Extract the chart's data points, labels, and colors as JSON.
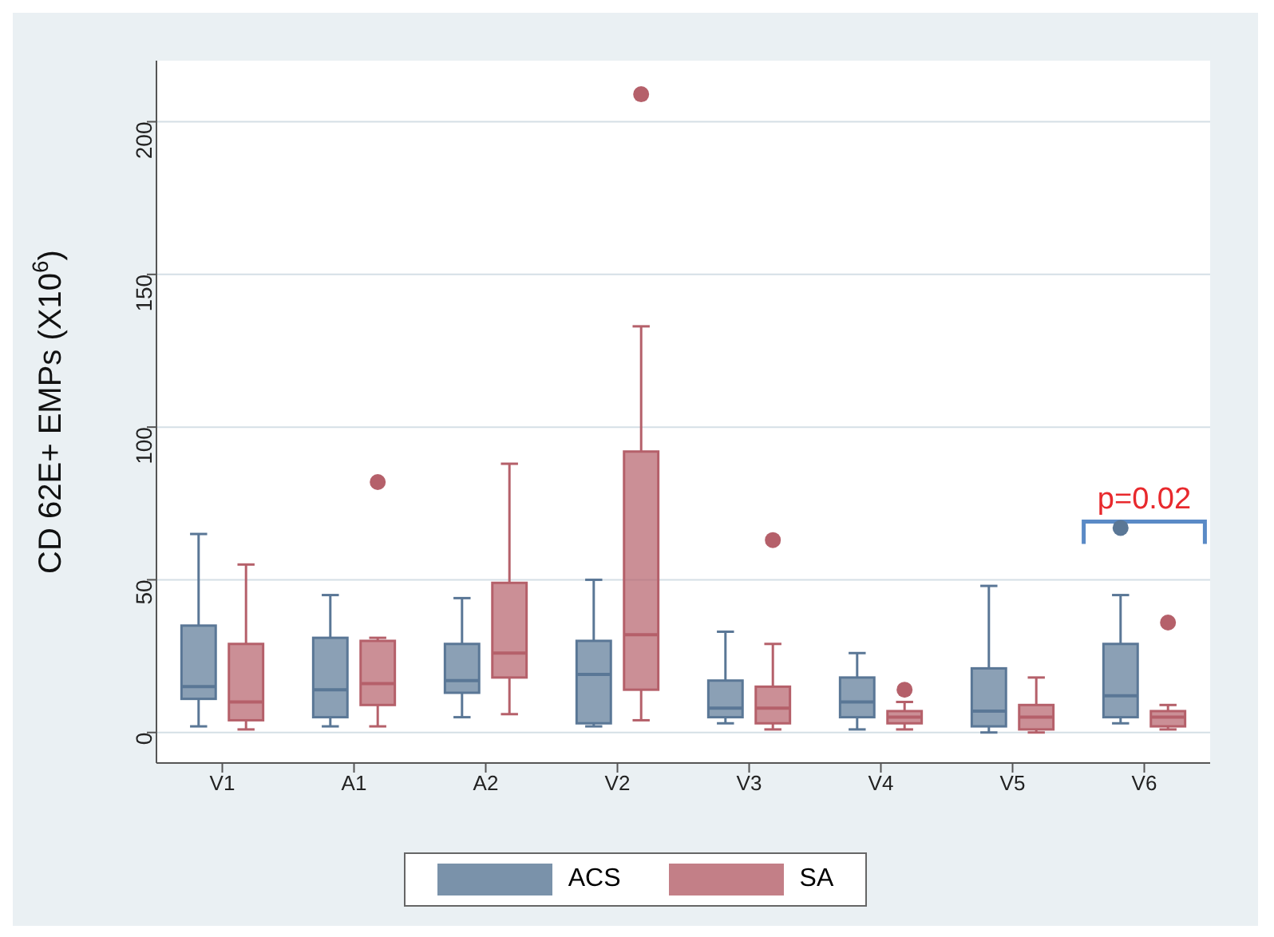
{
  "chart_data": {
    "type": "box",
    "ylabel": "CD 62E+ EMPs (X10$^{6}$)",
    "categories": [
      "V1",
      "A1",
      "A2",
      "V2",
      "V3",
      "V4",
      "V5",
      "V6"
    ],
    "ylim": [
      -10,
      220
    ],
    "yticks": [
      0,
      50,
      100,
      150,
      200
    ],
    "grid": "y",
    "legend": "bottom",
    "series": [
      {
        "name": "ACS",
        "color": "#5a7796",
        "boxes": [
          {
            "low": 2,
            "q1": 11,
            "median": 15,
            "q3": 35,
            "high": 65
          },
          {
            "low": 2,
            "q1": 5,
            "median": 14,
            "q3": 31,
            "high": 45
          },
          {
            "low": 5,
            "q1": 13,
            "median": 17,
            "q3": 29,
            "high": 44
          },
          {
            "low": 2,
            "q1": 3,
            "median": 19,
            "q3": 30,
            "high": 50
          },
          {
            "low": 3,
            "q1": 5,
            "median": 8,
            "q3": 17,
            "high": 33
          },
          {
            "low": 1,
            "q1": 5,
            "median": 10,
            "q3": 18,
            "high": 26
          },
          {
            "low": 0,
            "q1": 2,
            "median": 7,
            "q3": 21,
            "high": 48
          },
          {
            "low": 3,
            "q1": 5,
            "median": 12,
            "q3": 29,
            "high": 45,
            "outliers": [
              67
            ]
          }
        ]
      },
      {
        "name": "SA",
        "color": "#b5606a",
        "boxes": [
          {
            "low": 1,
            "q1": 4,
            "median": 10,
            "q3": 29,
            "high": 55
          },
          {
            "low": 2,
            "q1": 9,
            "median": 16,
            "q3": 30,
            "high": 31,
            "outliers": [
              82
            ]
          },
          {
            "low": 6,
            "q1": 18,
            "median": 26,
            "q3": 49,
            "high": 88
          },
          {
            "low": 4,
            "q1": 14,
            "median": 32,
            "q3": 92,
            "high": 133,
            "outliers": [
              209
            ]
          },
          {
            "low": 1,
            "q1": 3,
            "median": 8,
            "q3": 15,
            "high": 29,
            "outliers": [
              63
            ]
          },
          {
            "low": 1,
            "q1": 3,
            "median": 5,
            "q3": 7,
            "high": 10,
            "outliers": [
              14
            ]
          },
          {
            "low": 0,
            "q1": 1,
            "median": 5,
            "q3": 9,
            "high": 18
          },
          {
            "low": 1,
            "q1": 2,
            "median": 5,
            "q3": 7,
            "high": 9,
            "outliers": [
              36
            ]
          }
        ]
      }
    ],
    "annotations": [
      "p=0.02"
    ]
  }
}
